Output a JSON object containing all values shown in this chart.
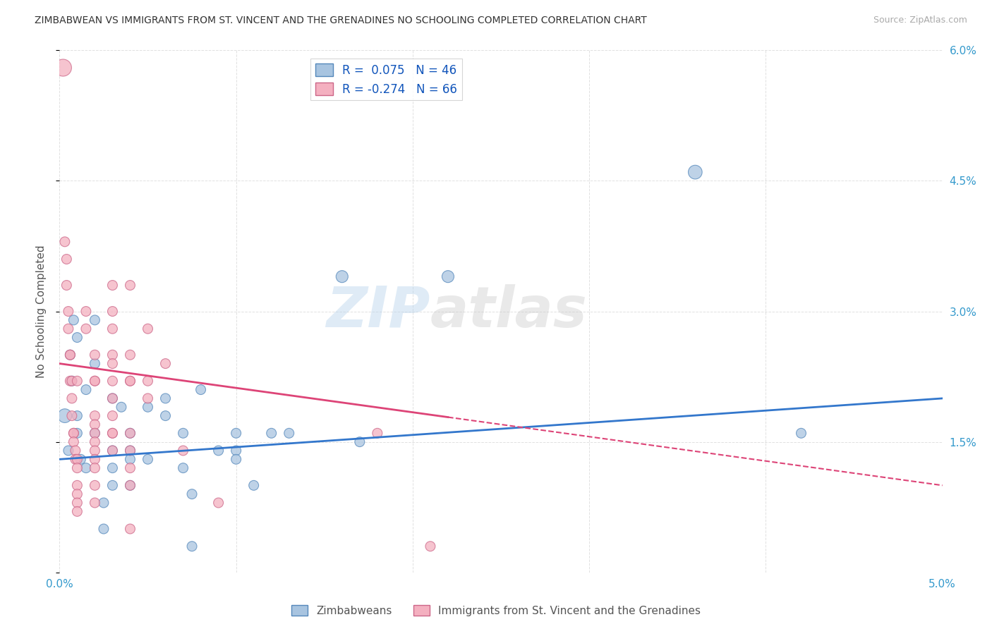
{
  "title": "ZIMBABWEAN VS IMMIGRANTS FROM ST. VINCENT AND THE GRENADINES NO SCHOOLING COMPLETED CORRELATION CHART",
  "source": "Source: ZipAtlas.com",
  "ylabel": "No Schooling Completed",
  "legend_blue_r": "R =  0.075",
  "legend_blue_n": "N = 46",
  "legend_pink_r": "R = -0.274",
  "legend_pink_n": "N = 66",
  "xlim": [
    0.0,
    0.05
  ],
  "ylim": [
    0.0,
    0.06
  ],
  "x_ticks": [
    0.0,
    0.01,
    0.02,
    0.03,
    0.04,
    0.05
  ],
  "x_tick_labels": [
    "0.0%",
    "",
    "",
    "",
    "",
    "5.0%"
  ],
  "y_ticks": [
    0.0,
    0.015,
    0.03,
    0.045,
    0.06
  ],
  "y_tick_labels_right": [
    "",
    "1.5%",
    "3.0%",
    "4.5%",
    "6.0%"
  ],
  "blue_scatter": [
    [
      0.0003,
      0.018
    ],
    [
      0.0005,
      0.014
    ],
    [
      0.0006,
      0.025
    ],
    [
      0.0007,
      0.022
    ],
    [
      0.0008,
      0.029
    ],
    [
      0.001,
      0.027
    ],
    [
      0.001,
      0.016
    ],
    [
      0.001,
      0.018
    ],
    [
      0.0012,
      0.013
    ],
    [
      0.0015,
      0.012
    ],
    [
      0.0015,
      0.021
    ],
    [
      0.002,
      0.029
    ],
    [
      0.002,
      0.024
    ],
    [
      0.002,
      0.016
    ],
    [
      0.0025,
      0.008
    ],
    [
      0.0025,
      0.005
    ],
    [
      0.003,
      0.02
    ],
    [
      0.003,
      0.014
    ],
    [
      0.003,
      0.012
    ],
    [
      0.003,
      0.01
    ],
    [
      0.0035,
      0.019
    ],
    [
      0.004,
      0.016
    ],
    [
      0.004,
      0.014
    ],
    [
      0.004,
      0.013
    ],
    [
      0.004,
      0.01
    ],
    [
      0.005,
      0.019
    ],
    [
      0.005,
      0.013
    ],
    [
      0.006,
      0.02
    ],
    [
      0.006,
      0.018
    ],
    [
      0.007,
      0.016
    ],
    [
      0.007,
      0.012
    ],
    [
      0.0075,
      0.009
    ],
    [
      0.0075,
      0.003
    ],
    [
      0.008,
      0.021
    ],
    [
      0.009,
      0.014
    ],
    [
      0.01,
      0.016
    ],
    [
      0.01,
      0.014
    ],
    [
      0.01,
      0.013
    ],
    [
      0.011,
      0.01
    ],
    [
      0.012,
      0.016
    ],
    [
      0.013,
      0.016
    ],
    [
      0.016,
      0.034
    ],
    [
      0.017,
      0.015
    ],
    [
      0.022,
      0.034
    ],
    [
      0.036,
      0.046
    ],
    [
      0.042,
      0.016
    ]
  ],
  "blue_sizes_raw": [
    200,
    100,
    100,
    100,
    100,
    100,
    100,
    100,
    100,
    100,
    100,
    100,
    100,
    100,
    100,
    100,
    100,
    100,
    100,
    100,
    100,
    100,
    100,
    100,
    100,
    100,
    100,
    100,
    100,
    100,
    100,
    100,
    100,
    100,
    100,
    100,
    100,
    100,
    100,
    100,
    100,
    150,
    100,
    150,
    200,
    100
  ],
  "pink_scatter": [
    [
      0.0002,
      0.058
    ],
    [
      0.0003,
      0.038
    ],
    [
      0.0004,
      0.036
    ],
    [
      0.0004,
      0.033
    ],
    [
      0.0005,
      0.03
    ],
    [
      0.0005,
      0.028
    ],
    [
      0.0006,
      0.025
    ],
    [
      0.0006,
      0.025
    ],
    [
      0.0006,
      0.022
    ],
    [
      0.0007,
      0.022
    ],
    [
      0.0007,
      0.02
    ],
    [
      0.0007,
      0.018
    ],
    [
      0.0008,
      0.016
    ],
    [
      0.0008,
      0.016
    ],
    [
      0.0008,
      0.015
    ],
    [
      0.0009,
      0.014
    ],
    [
      0.0009,
      0.013
    ],
    [
      0.001,
      0.013
    ],
    [
      0.001,
      0.012
    ],
    [
      0.001,
      0.01
    ],
    [
      0.001,
      0.009
    ],
    [
      0.001,
      0.008
    ],
    [
      0.001,
      0.007
    ],
    [
      0.001,
      0.022
    ],
    [
      0.0015,
      0.03
    ],
    [
      0.0015,
      0.028
    ],
    [
      0.002,
      0.025
    ],
    [
      0.002,
      0.022
    ],
    [
      0.002,
      0.022
    ],
    [
      0.002,
      0.018
    ],
    [
      0.002,
      0.017
    ],
    [
      0.002,
      0.016
    ],
    [
      0.002,
      0.015
    ],
    [
      0.002,
      0.014
    ],
    [
      0.002,
      0.013
    ],
    [
      0.002,
      0.012
    ],
    [
      0.002,
      0.01
    ],
    [
      0.002,
      0.008
    ],
    [
      0.003,
      0.03
    ],
    [
      0.003,
      0.028
    ],
    [
      0.003,
      0.025
    ],
    [
      0.003,
      0.024
    ],
    [
      0.003,
      0.022
    ],
    [
      0.003,
      0.02
    ],
    [
      0.003,
      0.018
    ],
    [
      0.003,
      0.016
    ],
    [
      0.003,
      0.016
    ],
    [
      0.003,
      0.014
    ],
    [
      0.004,
      0.033
    ],
    [
      0.004,
      0.025
    ],
    [
      0.004,
      0.022
    ],
    [
      0.004,
      0.022
    ],
    [
      0.004,
      0.016
    ],
    [
      0.004,
      0.014
    ],
    [
      0.004,
      0.012
    ],
    [
      0.004,
      0.01
    ],
    [
      0.004,
      0.005
    ],
    [
      0.005,
      0.028
    ],
    [
      0.005,
      0.022
    ],
    [
      0.005,
      0.02
    ],
    [
      0.006,
      0.024
    ],
    [
      0.007,
      0.014
    ],
    [
      0.009,
      0.008
    ],
    [
      0.018,
      0.016
    ],
    [
      0.021,
      0.003
    ],
    [
      0.003,
      0.033
    ]
  ],
  "pink_sizes_raw": [
    300,
    100,
    100,
    100,
    100,
    100,
    100,
    100,
    100,
    100,
    100,
    100,
    100,
    100,
    100,
    100,
    100,
    100,
    100,
    100,
    100,
    100,
    100,
    100,
    100,
    100,
    100,
    100,
    100,
    100,
    100,
    100,
    100,
    100,
    100,
    100,
    100,
    100,
    100,
    100,
    100,
    100,
    100,
    100,
    100,
    100,
    100,
    100,
    100,
    100,
    100,
    100,
    100,
    100,
    100,
    100,
    100,
    100,
    100,
    100,
    100,
    100,
    100,
    100,
    100,
    100
  ],
  "blue_color": "#a8c4e0",
  "blue_edge_color": "#5588bb",
  "pink_color": "#f4b0c0",
  "pink_edge_color": "#cc6688",
  "blue_line_color": "#3377cc",
  "pink_line_color": "#dd4477",
  "background_color": "#ffffff",
  "grid_color": "#cccccc",
  "title_color": "#333333",
  "axis_label_color": "#555555",
  "tick_color": "#3399cc",
  "legend_label_blue": "Zimbabweans",
  "legend_label_pink": "Immigrants from St. Vincent and the Grenadines"
}
